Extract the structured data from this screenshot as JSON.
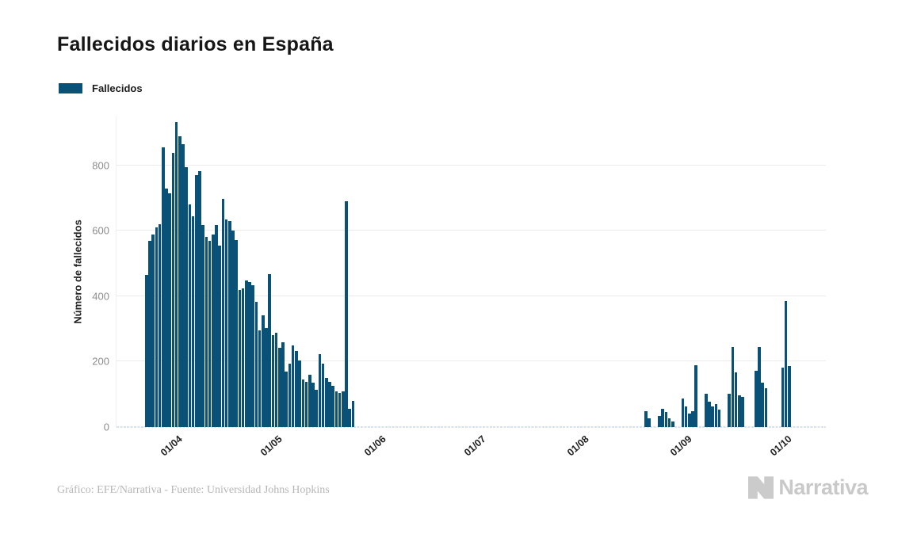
{
  "title": "Fallecidos diarios en España",
  "legend": {
    "label": "Fallecidos",
    "swatch_color": "#0a5178"
  },
  "footer": {
    "credit": "Gráfico: EFE/Narrativa - Fuente: Universidad Johns Hopkins",
    "brand": "Narrativa"
  },
  "chart_data": {
    "type": "bar",
    "title": "Fallecidos diarios en España",
    "series_name": "Fallecidos",
    "xlabel": "",
    "ylabel": "Número de fallecidos",
    "ylim": [
      0,
      950
    ],
    "yticks": [
      0,
      200,
      400,
      600,
      800
    ],
    "grid": "horizontal",
    "legend_position": "top-left",
    "bar_color": "#0a5178",
    "x_domain": [
      "2020-03-14",
      "2020-10-13"
    ],
    "xticks": [
      {
        "date": "2020-04-01",
        "label": "01/04"
      },
      {
        "date": "2020-05-01",
        "label": "01/05"
      },
      {
        "date": "2020-06-01",
        "label": "01/06"
      },
      {
        "date": "2020-07-01",
        "label": "01/07"
      },
      {
        "date": "2020-08-01",
        "label": "01/08"
      },
      {
        "date": "2020-09-01",
        "label": "01/09"
      },
      {
        "date": "2020-10-01",
        "label": "01/10"
      }
    ],
    "points": [
      [
        "2020-03-23",
        465
      ],
      [
        "2020-03-24",
        570
      ],
      [
        "2020-03-25",
        590
      ],
      [
        "2020-03-26",
        610
      ],
      [
        "2020-03-27",
        620
      ],
      [
        "2020-03-28",
        855
      ],
      [
        "2020-03-29",
        730
      ],
      [
        "2020-03-30",
        715
      ],
      [
        "2020-03-31",
        838
      ],
      [
        "2020-04-01",
        932
      ],
      [
        "2020-04-02",
        889
      ],
      [
        "2020-04-03",
        865
      ],
      [
        "2020-04-04",
        795
      ],
      [
        "2020-04-05",
        681
      ],
      [
        "2020-04-06",
        644
      ],
      [
        "2020-04-07",
        771
      ],
      [
        "2020-04-08",
        783
      ],
      [
        "2020-04-09",
        619
      ],
      [
        "2020-04-10",
        582
      ],
      [
        "2020-04-11",
        570
      ],
      [
        "2020-04-12",
        590
      ],
      [
        "2020-04-13",
        619
      ],
      [
        "2020-04-14",
        554
      ],
      [
        "2020-04-15",
        697
      ],
      [
        "2020-04-16",
        635
      ],
      [
        "2020-04-17",
        629
      ],
      [
        "2020-04-18",
        600
      ],
      [
        "2020-04-19",
        572
      ],
      [
        "2020-04-20",
        419
      ],
      [
        "2020-04-21",
        425
      ],
      [
        "2020-04-22",
        449
      ],
      [
        "2020-04-23",
        443
      ],
      [
        "2020-04-24",
        435
      ],
      [
        "2020-04-25",
        382
      ],
      [
        "2020-04-26",
        296
      ],
      [
        "2020-04-27",
        341
      ],
      [
        "2020-04-28",
        304
      ],
      [
        "2020-04-29",
        468
      ],
      [
        "2020-04-30",
        280
      ],
      [
        "2020-05-01",
        288
      ],
      [
        "2020-05-02",
        243
      ],
      [
        "2020-05-03",
        259
      ],
      [
        "2020-05-04",
        169
      ],
      [
        "2020-05-05",
        194
      ],
      [
        "2020-05-06",
        250
      ],
      [
        "2020-05-07",
        233
      ],
      [
        "2020-05-08",
        204
      ],
      [
        "2020-05-09",
        146
      ],
      [
        "2020-05-10",
        138
      ],
      [
        "2020-05-11",
        161
      ],
      [
        "2020-05-12",
        135
      ],
      [
        "2020-05-13",
        115
      ],
      [
        "2020-05-14",
        222
      ],
      [
        "2020-05-15",
        194
      ],
      [
        "2020-05-16",
        150
      ],
      [
        "2020-05-17",
        137
      ],
      [
        "2020-05-18",
        126
      ],
      [
        "2020-05-19",
        110
      ],
      [
        "2020-05-20",
        104
      ],
      [
        "2020-05-21",
        108
      ],
      [
        "2020-05-22",
        690
      ],
      [
        "2020-05-23",
        55
      ],
      [
        "2020-05-24",
        79
      ],
      [
        "2020-08-20",
        48
      ],
      [
        "2020-08-21",
        26
      ],
      [
        "2020-08-24",
        34
      ],
      [
        "2020-08-25",
        56
      ],
      [
        "2020-08-26",
        47
      ],
      [
        "2020-08-27",
        26
      ],
      [
        "2020-08-28",
        18
      ],
      [
        "2020-08-31",
        88
      ],
      [
        "2020-09-01",
        63
      ],
      [
        "2020-09-02",
        42
      ],
      [
        "2020-09-03",
        48
      ],
      [
        "2020-09-04",
        190
      ],
      [
        "2020-09-07",
        101
      ],
      [
        "2020-09-08",
        77
      ],
      [
        "2020-09-09",
        63
      ],
      [
        "2020-09-10",
        71
      ],
      [
        "2020-09-11",
        53
      ],
      [
        "2020-09-14",
        102
      ],
      [
        "2020-09-15",
        244
      ],
      [
        "2020-09-16",
        167
      ],
      [
        "2020-09-17",
        96
      ],
      [
        "2020-09-18",
        91
      ],
      [
        "2020-09-22",
        173
      ],
      [
        "2020-09-23",
        245
      ],
      [
        "2020-09-24",
        135
      ],
      [
        "2020-09-25",
        119
      ],
      [
        "2020-09-30",
        182
      ],
      [
        "2020-10-01",
        386
      ],
      [
        "2020-10-02",
        186
      ]
    ]
  }
}
